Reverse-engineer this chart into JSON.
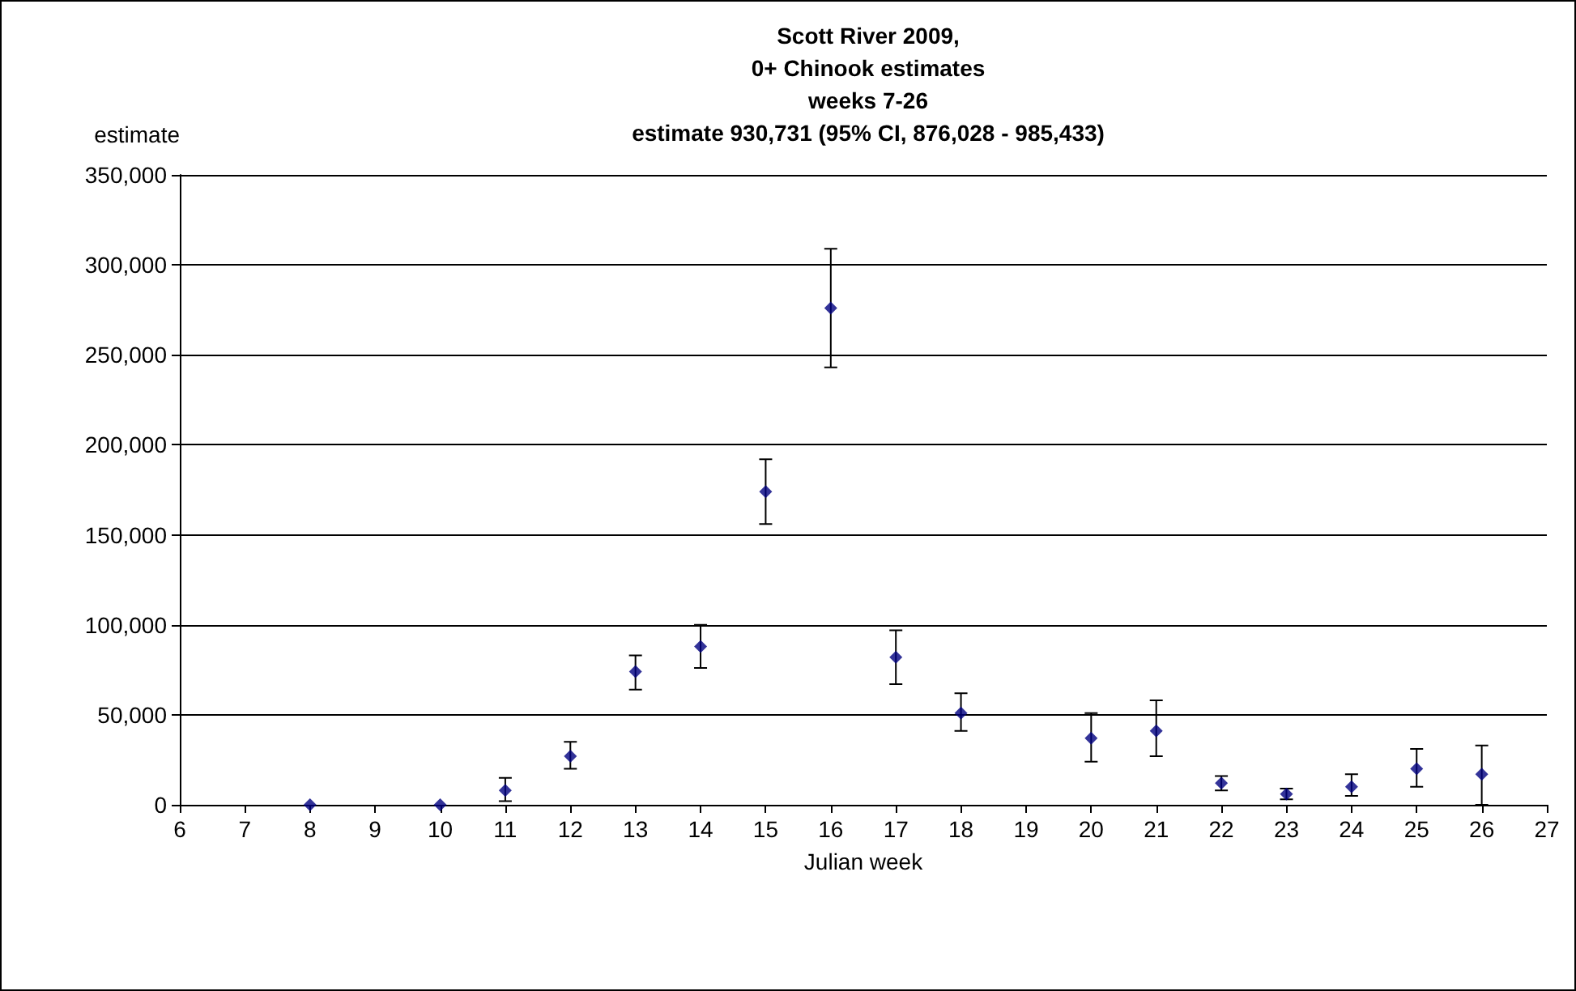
{
  "chart_data": {
    "type": "scatter",
    "title": "Scott River 2009,\n0+ Chinook estimates\nweeks 7-26\nestimate 930,731 (95% CI, 876,028 - 985,433)",
    "xlabel": "Julian week",
    "ylabel": "estimate",
    "x": [
      8,
      10,
      11,
      12,
      13,
      14,
      15,
      16,
      17,
      18,
      20,
      21,
      22,
      23,
      24,
      25,
      26
    ],
    "values": [
      0,
      0,
      8000,
      27000,
      74000,
      88000,
      174000,
      276000,
      82000,
      51000,
      37000,
      41000,
      12000,
      6000,
      10000,
      20000,
      17000
    ],
    "errors": [
      null,
      null,
      [
        2000,
        15000
      ],
      [
        20000,
        35000
      ],
      [
        64000,
        83000
      ],
      [
        76000,
        100000
      ],
      [
        156000,
        192000
      ],
      [
        243000,
        309000
      ],
      [
        67000,
        97000
      ],
      [
        41000,
        62000
      ],
      [
        24000,
        51000
      ],
      [
        27000,
        58000
      ],
      [
        8000,
        16000
      ],
      [
        3000,
        9000
      ],
      [
        5000,
        17000
      ],
      [
        10000,
        31000
      ],
      [
        0,
        33000
      ]
    ],
    "color": "#000080",
    "marker": "diamond",
    "xlim": [
      6,
      27
    ],
    "xticks": [
      6,
      7,
      8,
      9,
      10,
      11,
      12,
      13,
      14,
      15,
      16,
      17,
      18,
      19,
      20,
      21,
      22,
      23,
      24,
      25,
      26,
      27
    ],
    "ylim": [
      0,
      350000
    ],
    "yticks": [
      0,
      {
        "value": 50000,
        "label": "50,000"
      },
      {
        "value": 100000,
        "label": "100,000"
      },
      {
        "value": 150000,
        "label": "150,000"
      },
      {
        "value": 200000,
        "label": "200,000"
      },
      {
        "value": 250000,
        "label": "250,000"
      },
      {
        "value": 300000,
        "label": "300,000"
      },
      {
        "value": 350000,
        "label": "350,000"
      }
    ],
    "grid": "y"
  }
}
